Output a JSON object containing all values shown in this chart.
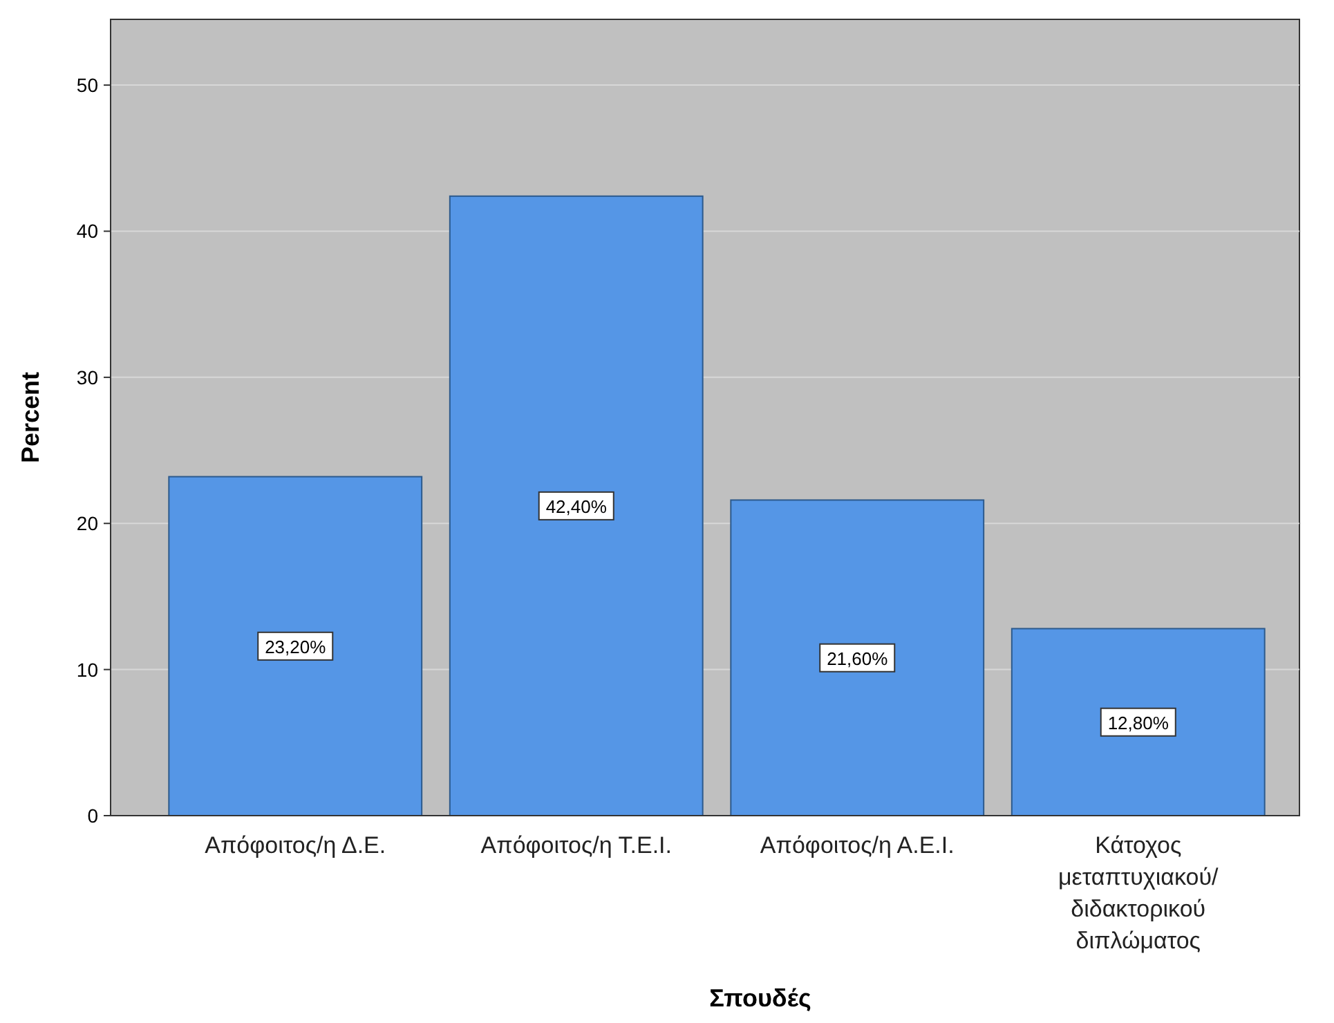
{
  "chart_data": {
    "type": "bar",
    "xlabel": "Σπουδές",
    "ylabel": "Percent",
    "categories": [
      "Απόφοιτος/η Δ.Ε.",
      "Απόφοιτος/η Τ.Ε.Ι.",
      "Απόφοιτος/η Α.Ε.Ι.",
      "Κάτοχος μεταπτυχιακού/ διδακτορικού διπλώματος"
    ],
    "values": [
      23.2,
      42.4,
      21.6,
      12.8
    ],
    "value_labels": [
      "23,20%",
      "42,40%",
      "21,60%",
      "12,80%"
    ],
    "color": "#5596e6",
    "ylim": [
      0,
      54.5
    ],
    "yticks": [
      0,
      10,
      20,
      30,
      40,
      50
    ],
    "grid": "y"
  }
}
